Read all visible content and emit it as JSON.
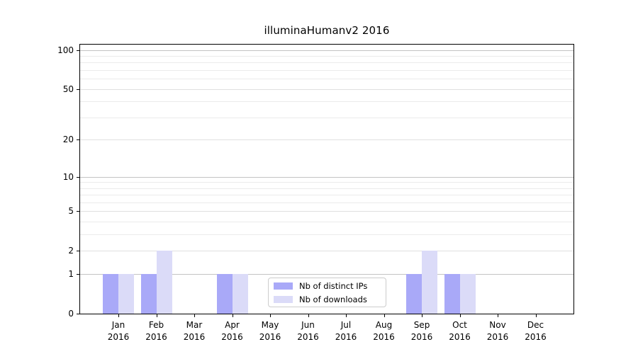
{
  "title": "illuminaHumanv2 2016",
  "chart_data": {
    "type": "bar",
    "title": "illuminaHumanv2 2016",
    "categories": [
      "Jan 2016",
      "Feb 2016",
      "Mar 2016",
      "Apr 2016",
      "May 2016",
      "Jun 2016",
      "Jul 2016",
      "Aug 2016",
      "Sep 2016",
      "Oct 2016",
      "Nov 2016",
      "Dec 2016"
    ],
    "series": [
      {
        "name": "Nb of distinct IPs",
        "color": "#a9a9f8",
        "values": [
          1,
          1,
          0,
          1,
          0,
          0,
          0,
          0,
          1,
          1,
          0,
          0
        ]
      },
      {
        "name": "Nb of downloads",
        "color": "#dbdbf8",
        "values": [
          1,
          2,
          0,
          1,
          0,
          0,
          0,
          0,
          2,
          1,
          0,
          0
        ]
      }
    ],
    "xlabel": "",
    "ylabel": "",
    "yscale": "log1p",
    "ylim": [
      0,
      110
    ],
    "yticks": [
      0,
      1,
      2,
      5,
      10,
      20,
      50,
      100
    ],
    "minor_gridlines": [
      3,
      4,
      6,
      7,
      8,
      9,
      30,
      40,
      60,
      70,
      80,
      90
    ],
    "grid": "horizontal",
    "legend_position": "lower center"
  },
  "colors": {
    "axis": "#000000",
    "grid_major_decade": "#c3c3c3",
    "grid_major_other": "#e0e0e0",
    "grid_minor": "#ebebeb",
    "legend_border": "#cccccc",
    "background": "#ffffff"
  }
}
